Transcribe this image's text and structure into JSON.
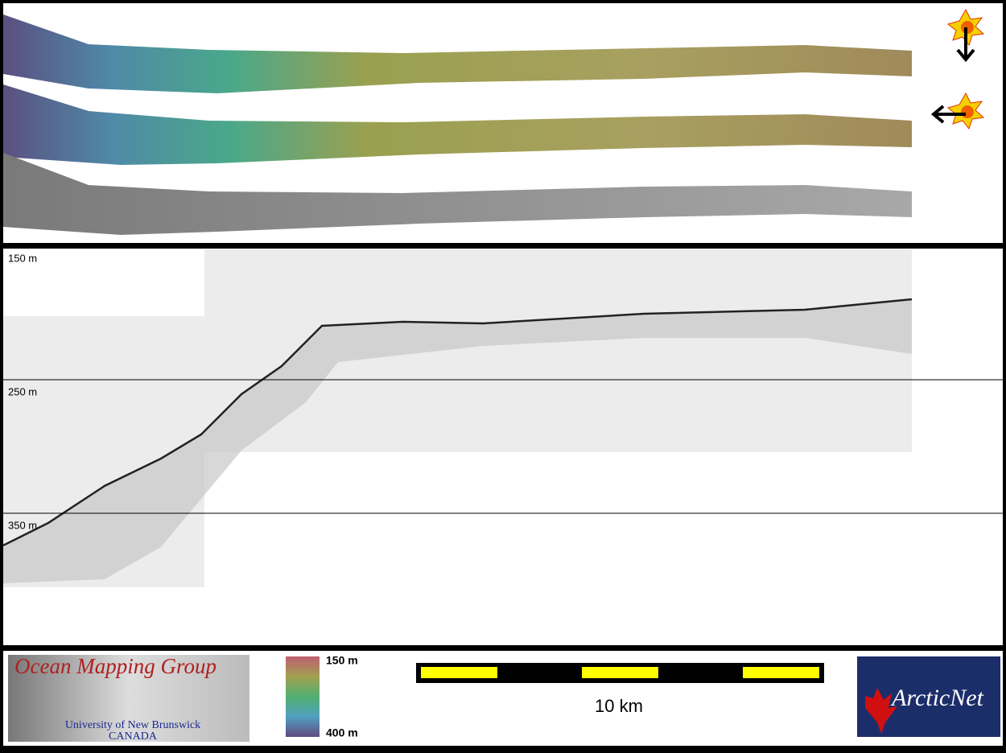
{
  "profile": {
    "depth_labels": [
      "150 m",
      "250 m",
      "350 m"
    ]
  },
  "legend": {
    "top": "150 m",
    "bottom": "400 m"
  },
  "scale_bar": {
    "label": "10 km"
  },
  "logos": {
    "omg": {
      "title": "Ocean Mapping Group",
      "line1": "University of New Brunswick",
      "line2": "CANADA"
    },
    "arcticnet": "ArcticNet"
  }
}
